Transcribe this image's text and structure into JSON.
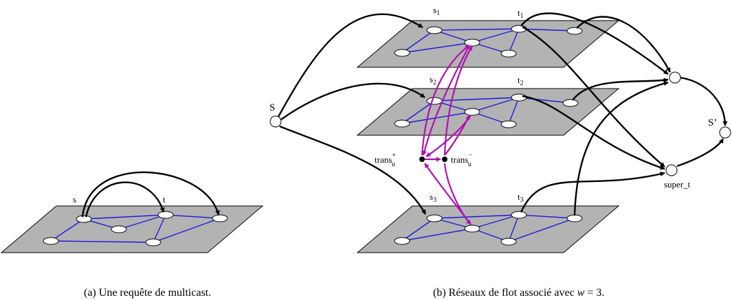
{
  "figure_a": {
    "caption": "(a) Une requête de multicast.",
    "label_s": "s",
    "label_t": "t"
  },
  "figure_b": {
    "caption": "(b) Réseaux de flot associé avec w = 3.",
    "caption_prefix": "(b) Réseaux de flot associé avec ",
    "caption_var": "w",
    "caption_suffix": " = 3.",
    "source_label": "S",
    "sink_label": "S’",
    "super_t_label": "super_t",
    "layers": [
      {
        "s": "s",
        "s_sub": "1",
        "t": "t",
        "t_sub": "1"
      },
      {
        "s": "s",
        "s_sub": "2",
        "t": "t",
        "t_sub": "2"
      },
      {
        "s": "s",
        "s_sub": "3",
        "t": "t",
        "t_sub": "3"
      }
    ],
    "trans_plus": {
      "base": "trans",
      "sub": "u",
      "sup": "+"
    },
    "trans_minus": {
      "base": "trans",
      "sub": "u",
      "sup": "−"
    }
  },
  "colors": {
    "plane_fill": "#b3b3b3",
    "graph_edges": "#1a1adc",
    "trans_arcs": "#b010b0",
    "flow_arcs": "#000000"
  }
}
